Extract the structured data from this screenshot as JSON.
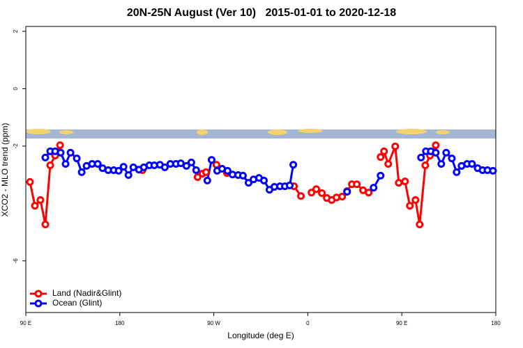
{
  "chart_data": {
    "type": "line",
    "title": "20N-25N August (Ver 10)   2015-01-01 to 2020-12-18",
    "x_label": "Longitude (deg E)",
    "y_label": "XCO2 - MLO trend (ppm)",
    "xlim": [
      90,
      540
    ],
    "ylim": [
      -7.8,
      2.17
    ],
    "xticks": [
      {
        "value": 90,
        "label": "90 E"
      },
      180,
      {
        "value": 270,
        "label": "90 W"
      },
      {
        "value": 360,
        "label": "0"
      },
      {
        "value": 450,
        "label": "90 E"
      },
      {
        "value": 540,
        "label": "180"
      }
    ],
    "yticks": [
      2,
      0,
      -2,
      -6
    ],
    "legend": "bottom-left",
    "series": [
      {
        "name": "Land (Nadir&Glint)",
        "color": "#ff0000",
        "x": [
          94.0,
          98.7,
          104.0,
          108.7,
          113.4,
          118.1,
          122.8,
          null,
          201.7,
          null,
          254.5,
          259.2,
          262.5,
          null,
          272.5,
          282.6,
          null,
          346.8,
          353.4,
          null,
          363.5,
          368.1,
          373.5,
          378.2,
          382.9,
          387.5,
          392.9,
          397.6,
          402.2,
          406.9,
          412.9,
          418.3,
          null,
          429.7,
          433.0,
          437.0,
          443.7,
          447.1,
          453.1,
          457.7,
          463.1,
          467.1,
          472.5,
          477.1,
          482.5
        ],
        "values": [
          -3.25,
          -4.08,
          -3.88,
          -4.73,
          -2.67,
          -2.33,
          -1.97,
          null,
          -2.84,
          null,
          -3.08,
          -2.96,
          -2.91,
          null,
          -2.65,
          -2.94,
          null,
          -3.4,
          -3.74,
          null,
          -3.62,
          -3.5,
          -3.64,
          -3.81,
          -3.88,
          -3.79,
          -3.76,
          -3.57,
          -3.33,
          -3.33,
          -3.54,
          -3.62,
          null,
          -2.38,
          -2.18,
          -2.62,
          -2.01,
          -3.28,
          -3.23,
          -4.08,
          -3.88,
          -4.73,
          -2.67,
          -2.33,
          -1.97
        ]
      },
      {
        "name": "Ocean (Glint)",
        "color": "#0000ff",
        "x": [
          108.7,
          113.4,
          118.1,
          123.4,
          128.1,
          132.8,
          138.8,
          143.5,
          148.2,
          153.5,
          158.9,
          163.5,
          168.9,
          174.2,
          178.9,
          183.6,
          188.3,
          193.0,
          198.3,
          203.0,
          208.3,
          213.0,
          218.4,
          223.1,
          228.4,
          233.8,
          238.4,
          243.8,
          248.5,
          253.1,
          null,
          263.8,
          267.9,
          273.2,
          277.9,
          283.2,
          287.9,
          293.3,
          297.9,
          303.3,
          308.0,
          313.3,
          318.0,
          323.3,
          328.0,
          333.4,
          338.1,
          342.7,
          346.1,
          null,
          397.6,
          null,
          423.0,
          429.7,
          null,
          468.4,
          473.1,
          477.8,
          482.5,
          487.8,
          492.5,
          497.9,
          502.5,
          507.2,
          512.6,
          517.2,
          522.6,
          527.3,
          532.0,
          537.3
        ],
        "values": [
          -2.4,
          -2.18,
          -2.18,
          -2.23,
          -2.62,
          -2.23,
          -2.43,
          -2.91,
          -2.69,
          -2.62,
          -2.62,
          -2.77,
          -2.84,
          -2.84,
          -2.86,
          -2.72,
          -3.01,
          -2.74,
          -2.82,
          -2.74,
          -2.67,
          -2.67,
          -2.65,
          -2.74,
          -2.62,
          -2.62,
          -2.6,
          -2.69,
          -2.57,
          -2.84,
          null,
          -3.2,
          -2.48,
          -2.86,
          -2.79,
          -2.86,
          -2.99,
          -3.01,
          -3.03,
          -3.28,
          -3.16,
          -3.11,
          -3.2,
          -3.52,
          -3.42,
          -3.4,
          -3.4,
          -3.37,
          -2.65,
          null,
          -3.59,
          null,
          -3.45,
          -3.03,
          null,
          -2.4,
          -2.18,
          -2.18,
          -2.23,
          -2.62,
          -2.23,
          -2.43,
          -2.91,
          -2.69,
          -2.62,
          -2.62,
          -2.77,
          -2.84,
          -2.84,
          -2.86
        ]
      }
    ]
  }
}
